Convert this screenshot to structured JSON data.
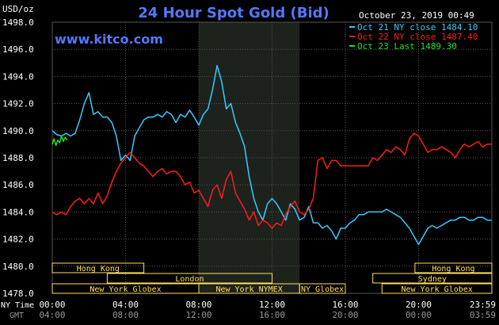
{
  "chart_data": {
    "type": "line",
    "title": "24 Hour Spot Gold (Bid)",
    "unit_label": "USD/oz",
    "watermark": "www.kitco.com",
    "timestamp": "October 23, 2019 00:49",
    "ylim": [
      1478.0,
      1498.0
    ],
    "y_ticks": [
      "1498.0",
      "1496.0",
      "1494.0",
      "1492.0",
      "1490.0",
      "1488.0",
      "1486.0",
      "1484.0",
      "1482.0",
      "1480.0",
      "1478.0"
    ],
    "x_ticks_ny": [
      "00:00",
      "04:00",
      "08:00",
      "12:00",
      "16:00",
      "20:00",
      "23:59"
    ],
    "x_ticks_gmt": [
      "04:00",
      "08:00",
      "12:00",
      "16:00",
      "20:00",
      "00:00",
      "03:59"
    ],
    "x_label_ny": "NY Time",
    "x_label_gmt": "GMT",
    "grid": true,
    "legend_position": "top-right",
    "highlight_band": [
      8.0,
      13.5
    ],
    "colors": {
      "series1": "#33ccff",
      "series2": "#ff1a1a",
      "series3": "#22dd22",
      "title": "#5577ff",
      "watermark": "#5577ff",
      "session": "#ffe060",
      "text": "#ffffff",
      "grid": "#555555"
    },
    "series": [
      {
        "name": "Oct 21 NY close 1484.10",
        "color": "#33ccff",
        "x": [
          0.0,
          0.25,
          0.5,
          0.75,
          1.0,
          1.25,
          1.5,
          1.75,
          2.0,
          2.25,
          2.5,
          2.75,
          3.0,
          3.25,
          3.5,
          3.75,
          4.0,
          4.25,
          4.5,
          4.75,
          5.0,
          5.25,
          5.5,
          5.75,
          6.0,
          6.25,
          6.5,
          6.75,
          7.0,
          7.25,
          7.5,
          7.75,
          8.0,
          8.25,
          8.5,
          8.75,
          9.0,
          9.25,
          9.5,
          9.75,
          10.0,
          10.25,
          10.5,
          10.75,
          11.0,
          11.25,
          11.5,
          11.75,
          12.0,
          12.25,
          12.5,
          12.75,
          13.0,
          13.25,
          13.5,
          13.75,
          14.0,
          14.25,
          14.5,
          14.75,
          15.0,
          15.25,
          15.5,
          15.75,
          16.0,
          16.25,
          16.5,
          16.75,
          17.0,
          17.25,
          17.5,
          17.75,
          18.0,
          18.25,
          18.5,
          18.75,
          19.0,
          19.25,
          19.5,
          19.75,
          20.0,
          20.25,
          20.5,
          20.75,
          21.0,
          21.25,
          21.5,
          21.75,
          22.0,
          22.25,
          22.5,
          22.75,
          23.0,
          23.25,
          23.5,
          23.75,
          23.98
        ],
        "values": [
          1490.0,
          1489.7,
          1489.6,
          1489.8,
          1489.6,
          1489.8,
          1490.8,
          1492.0,
          1492.8,
          1491.2,
          1491.4,
          1491.0,
          1491.0,
          1490.6,
          1489.6,
          1487.8,
          1488.2,
          1487.8,
          1489.6,
          1490.2,
          1490.8,
          1491.0,
          1491.0,
          1491.2,
          1491.0,
          1491.4,
          1491.2,
          1490.6,
          1491.2,
          1491.0,
          1491.5,
          1491.0,
          1490.4,
          1491.2,
          1491.6,
          1493.0,
          1494.8,
          1493.6,
          1491.6,
          1492.0,
          1490.6,
          1489.8,
          1488.8,
          1486.6,
          1485.0,
          1484.0,
          1483.4,
          1484.6,
          1485.0,
          1484.6,
          1484.0,
          1483.4,
          1484.6,
          1484.2,
          1483.4,
          1483.6,
          1484.4,
          1483.2,
          1483.2,
          1482.8,
          1483.0,
          1482.6,
          1482.0,
          1482.8,
          1482.8,
          1483.2,
          1483.4,
          1483.8,
          1483.8,
          1484.0,
          1484.0,
          1484.0,
          1484.0,
          1484.2,
          1484.0,
          1483.8,
          1483.6,
          1483.2,
          1482.8,
          1482.2,
          1481.6,
          1482.2,
          1482.8,
          1483.0,
          1482.8,
          1483.0,
          1483.2,
          1483.4,
          1483.4,
          1483.6,
          1483.6,
          1483.4,
          1483.4,
          1483.6,
          1483.6,
          1483.4,
          1483.4
        ],
        "ny_close": 1484.1
      },
      {
        "name": "Oct 22 NY close 1487.40",
        "color": "#ff1a1a",
        "x": [
          0.0,
          0.25,
          0.5,
          0.75,
          1.0,
          1.25,
          1.5,
          1.75,
          2.0,
          2.25,
          2.5,
          2.75,
          3.0,
          3.25,
          3.5,
          3.75,
          4.0,
          4.25,
          4.5,
          4.75,
          5.0,
          5.25,
          5.5,
          5.75,
          6.0,
          6.25,
          6.5,
          6.75,
          7.0,
          7.25,
          7.5,
          7.75,
          8.0,
          8.25,
          8.5,
          8.75,
          9.0,
          9.25,
          9.5,
          9.75,
          10.0,
          10.25,
          10.5,
          10.75,
          11.0,
          11.25,
          11.5,
          11.75,
          12.0,
          12.25,
          12.5,
          12.75,
          13.0,
          13.25,
          13.5,
          13.75,
          14.0,
          14.25,
          14.5,
          14.75,
          15.0,
          15.25,
          15.5,
          15.75,
          16.0,
          16.25,
          16.5,
          16.75,
          17.0,
          17.25,
          17.5,
          17.75,
          18.0,
          18.25,
          18.5,
          18.75,
          19.0,
          19.25,
          19.5,
          19.75,
          20.0,
          20.25,
          20.5,
          20.75,
          21.0,
          21.25,
          21.5,
          21.75,
          22.0,
          22.25,
          22.5,
          22.75,
          23.0,
          23.25,
          23.5,
          23.75,
          23.98
        ],
        "values": [
          1484.0,
          1483.8,
          1484.0,
          1483.8,
          1484.4,
          1484.8,
          1485.0,
          1484.6,
          1485.0,
          1484.6,
          1485.4,
          1484.6,
          1485.2,
          1486.2,
          1487.0,
          1487.6,
          1488.0,
          1488.4,
          1488.0,
          1487.6,
          1487.4,
          1487.0,
          1486.6,
          1487.0,
          1487.2,
          1486.8,
          1487.0,
          1487.0,
          1486.6,
          1486.0,
          1486.2,
          1485.4,
          1485.6,
          1485.0,
          1484.4,
          1485.6,
          1486.0,
          1485.0,
          1486.4,
          1487.0,
          1485.4,
          1484.8,
          1484.2,
          1483.4,
          1484.0,
          1483.0,
          1483.4,
          1483.2,
          1482.8,
          1483.2,
          1483.0,
          1483.8,
          1484.4,
          1484.8,
          1484.0,
          1483.8,
          1484.2,
          1485.0,
          1487.8,
          1488.0,
          1487.2,
          1487.8,
          1487.8,
          1487.4,
          1487.4,
          1487.4,
          1487.4,
          1487.4,
          1487.4,
          1487.4,
          1488.0,
          1487.8,
          1488.2,
          1488.6,
          1488.4,
          1488.8,
          1488.6,
          1488.2,
          1489.4,
          1489.8,
          1489.6,
          1489.0,
          1488.4,
          1488.6,
          1488.6,
          1488.8,
          1488.6,
          1488.4,
          1488.0,
          1488.6,
          1489.0,
          1488.8,
          1489.0,
          1489.2,
          1488.8,
          1489.0,
          1489.0
        ],
        "ny_close": 1487.4
      },
      {
        "name": "Oct 23 Last 1489.30",
        "color": "#22dd22",
        "x": [
          0.0,
          0.1,
          0.2,
          0.3,
          0.4,
          0.5,
          0.6,
          0.7,
          0.82
        ],
        "values": [
          1489.0,
          1489.4,
          1488.9,
          1489.3,
          1489.1,
          1489.6,
          1489.2,
          1489.5,
          1489.3
        ],
        "last": 1489.3
      }
    ],
    "sessions": [
      {
        "label": "Hong Kong",
        "row": 0,
        "start": 0.0,
        "end": 5.0
      },
      {
        "label": "Hong Kong",
        "row": 0,
        "start": 19.8,
        "end": 24.0
      },
      {
        "label": "London",
        "row": 1,
        "start": 3.0,
        "end": 12.0
      },
      {
        "label": "Sydney",
        "row": 1,
        "start": 17.5,
        "end": 24.0
      },
      {
        "label": "New York Globex",
        "row": 2,
        "start": 0.0,
        "end": 8.0
      },
      {
        "label": "New York NYMEX",
        "row": 2,
        "start": 8.0,
        "end": 13.5
      },
      {
        "label": "NY Globex",
        "row": 2,
        "start": 13.5,
        "end": 16.0
      },
      {
        "label": "New York Globex",
        "row": 2,
        "start": 18.0,
        "end": 24.0
      }
    ]
  }
}
